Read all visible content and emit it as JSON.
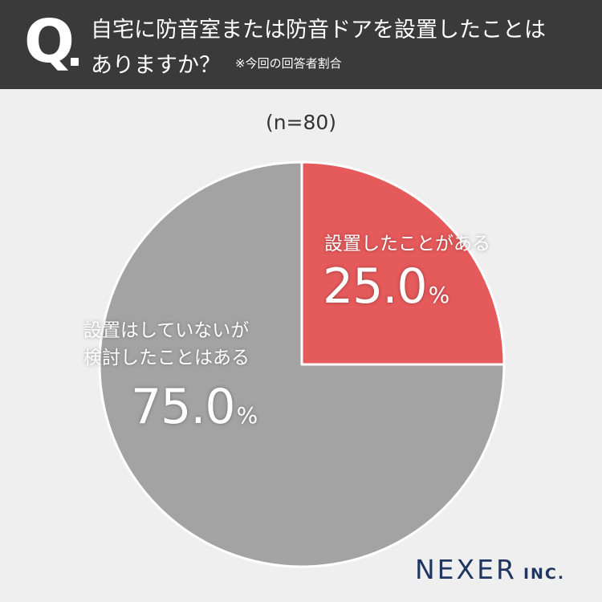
{
  "question": {
    "letter": "Q",
    "line1": "自宅に防音室または防音ドアを設置したことは",
    "line2": "ありますか？",
    "note": "※今回の回答者割合"
  },
  "sample_size": "(n=80)",
  "brand": {
    "name": "NEXER",
    "suffix": "INC."
  },
  "chart_data": {
    "type": "pie",
    "title": "自宅に防音室または防音ドアを設置したことはありますか？",
    "n": 80,
    "slices": [
      {
        "label": "設置したことがある",
        "value": 25.0,
        "display": "25.0",
        "color": "#e55a5b"
      },
      {
        "label": "設置はしていないが検討したことはある",
        "label_lines": [
          "設置はしていないが",
          "検討したことはある"
        ],
        "value": 75.0,
        "display": "75.0",
        "color": "#a3a3a3"
      }
    ],
    "unit": "%"
  }
}
